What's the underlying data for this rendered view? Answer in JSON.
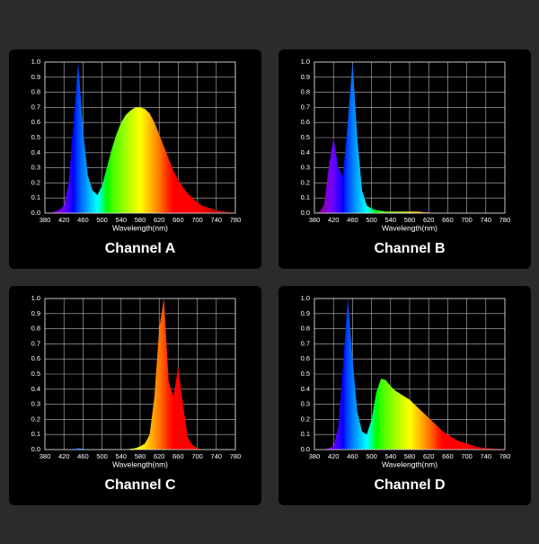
{
  "chart_data": [
    {
      "type": "area",
      "title": "Channel A",
      "xlabel": "Wavelength(nm)",
      "x": [
        380,
        390,
        400,
        410,
        420,
        430,
        440,
        450,
        460,
        470,
        480,
        490,
        500,
        510,
        520,
        530,
        540,
        550,
        560,
        570,
        580,
        590,
        600,
        610,
        620,
        630,
        640,
        650,
        660,
        670,
        680,
        690,
        700,
        710,
        720,
        730,
        740,
        750,
        760,
        770,
        780
      ],
      "values": [
        0,
        0,
        0.01,
        0.02,
        0.05,
        0.2,
        0.6,
        1.0,
        0.55,
        0.25,
        0.15,
        0.12,
        0.18,
        0.3,
        0.42,
        0.52,
        0.6,
        0.65,
        0.68,
        0.7,
        0.7,
        0.69,
        0.66,
        0.6,
        0.52,
        0.44,
        0.36,
        0.28,
        0.22,
        0.17,
        0.13,
        0.1,
        0.07,
        0.05,
        0.04,
        0.03,
        0.02,
        0.015,
        0.01,
        0.005,
        0
      ],
      "xlim": [
        380,
        780
      ],
      "xticks": [
        380,
        420,
        460,
        500,
        540,
        580,
        620,
        660,
        700,
        740,
        780
      ],
      "ylim": [
        0,
        1
      ],
      "yticks": [
        {
          "value": 0,
          "label": "0.0"
        },
        0.1,
        0.2,
        0.3,
        0.4,
        0.5,
        0.6,
        0.7,
        0.8,
        0.9,
        {
          "value": 1,
          "label": "1.0"
        }
      ],
      "grid": true
    },
    {
      "type": "area",
      "title": "Channel B",
      "xlabel": "Wavelength(nm)",
      "x": [
        380,
        390,
        400,
        410,
        420,
        430,
        440,
        450,
        460,
        470,
        480,
        490,
        500,
        510,
        520,
        530,
        540,
        550,
        560,
        570,
        580,
        590,
        600,
        610,
        620,
        630,
        640,
        650,
        660,
        670,
        680,
        690,
        700,
        710,
        720,
        730,
        740,
        750,
        760,
        770,
        780
      ],
      "values": [
        0,
        0.01,
        0.05,
        0.3,
        0.5,
        0.3,
        0.25,
        0.6,
        1.0,
        0.5,
        0.15,
        0.05,
        0.03,
        0.02,
        0.015,
        0.01,
        0.01,
        0.01,
        0.01,
        0.01,
        0.01,
        0.01,
        0.01,
        0.005,
        0.005,
        0,
        0,
        0,
        0,
        0,
        0,
        0,
        0,
        0,
        0,
        0,
        0,
        0,
        0,
        0,
        0
      ],
      "xlim": [
        380,
        780
      ],
      "xticks": [
        380,
        420,
        460,
        500,
        540,
        580,
        620,
        660,
        700,
        740,
        780
      ],
      "ylim": [
        0,
        1
      ],
      "yticks": [
        {
          "value": 0,
          "label": "0.0"
        },
        0.1,
        0.2,
        0.3,
        0.4,
        0.5,
        0.6,
        0.7,
        0.8,
        0.9,
        {
          "value": 1,
          "label": "1.0"
        }
      ],
      "grid": true
    },
    {
      "type": "area",
      "title": "Channel C",
      "xlabel": "Wavelength(nm)",
      "x": [
        380,
        390,
        400,
        410,
        420,
        430,
        440,
        450,
        460,
        470,
        480,
        490,
        500,
        510,
        520,
        530,
        540,
        550,
        560,
        570,
        580,
        590,
        600,
        610,
        620,
        630,
        640,
        650,
        660,
        670,
        680,
        690,
        700,
        710,
        720,
        730,
        740,
        750,
        760,
        770,
        780
      ],
      "values": [
        0,
        0,
        0,
        0,
        0,
        0,
        0.005,
        0.01,
        0.005,
        0,
        0,
        0,
        0,
        0,
        0,
        0,
        0,
        0,
        0.005,
        0.01,
        0.02,
        0.04,
        0.1,
        0.35,
        0.8,
        1.0,
        0.45,
        0.35,
        0.55,
        0.3,
        0.08,
        0.03,
        0.01,
        0,
        0,
        0,
        0,
        0,
        0,
        0,
        0
      ],
      "xlim": [
        380,
        780
      ],
      "xticks": [
        380,
        420,
        460,
        500,
        540,
        580,
        620,
        660,
        700,
        740,
        780
      ],
      "ylim": [
        0,
        1
      ],
      "yticks": [
        {
          "value": 0,
          "label": "0.0"
        },
        0.1,
        0.2,
        0.3,
        0.4,
        0.5,
        0.6,
        0.7,
        0.8,
        0.9,
        {
          "value": 1,
          "label": "1.0"
        }
      ],
      "grid": true
    },
    {
      "type": "area",
      "title": "Channel D",
      "xlabel": "Wavelength(nm)",
      "x": [
        380,
        390,
        400,
        410,
        420,
        430,
        440,
        450,
        460,
        470,
        480,
        490,
        500,
        510,
        520,
        530,
        540,
        550,
        560,
        570,
        580,
        590,
        600,
        610,
        620,
        630,
        640,
        650,
        660,
        670,
        680,
        690,
        700,
        710,
        720,
        730,
        740,
        750,
        760,
        770,
        780
      ],
      "values": [
        0,
        0,
        0,
        0.01,
        0.02,
        0.15,
        0.55,
        1.0,
        0.6,
        0.25,
        0.12,
        0.1,
        0.2,
        0.38,
        0.47,
        0.46,
        0.42,
        0.39,
        0.37,
        0.35,
        0.33,
        0.3,
        0.27,
        0.24,
        0.21,
        0.18,
        0.15,
        0.12,
        0.1,
        0.08,
        0.06,
        0.05,
        0.04,
        0.03,
        0.02,
        0.015,
        0.01,
        0.01,
        0.005,
        0.005,
        0
      ],
      "xlim": [
        380,
        780
      ],
      "xticks": [
        380,
        420,
        460,
        500,
        540,
        580,
        620,
        660,
        700,
        740,
        780
      ],
      "ylim": [
        0,
        1
      ],
      "yticks": [
        {
          "value": 0,
          "label": "0.0"
        },
        0.1,
        0.2,
        0.3,
        0.4,
        0.5,
        0.6,
        0.7,
        0.8,
        0.9,
        {
          "value": 1,
          "label": "1.0"
        }
      ],
      "grid": true
    }
  ]
}
